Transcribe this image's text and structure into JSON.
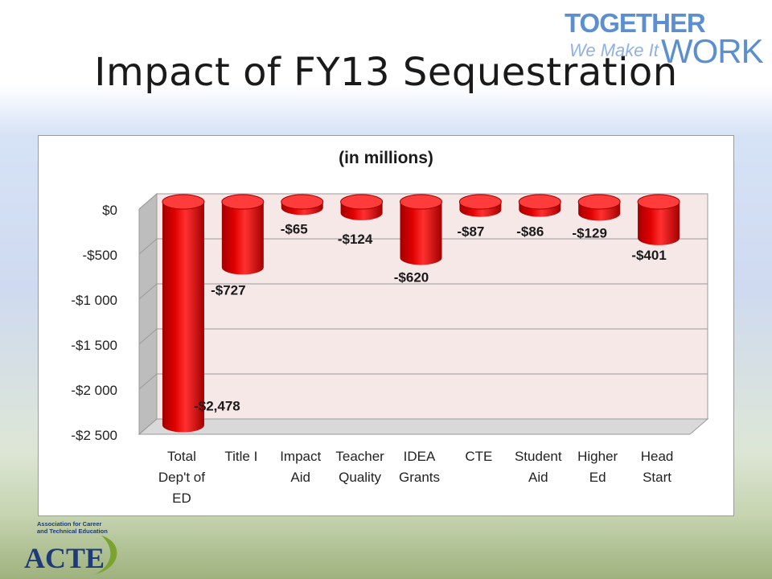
{
  "slide": {
    "title": "Impact of FY13 Sequestration",
    "logo_together_line1": "TOGETHER",
    "logo_together_line2a": "We Make It",
    "logo_together_line2b": "WORK.",
    "logo_acte_tagline_1": "Association for Career",
    "logo_acte_tagline_2": "and Technical Education",
    "logo_acte_name": "ACTE"
  },
  "colors": {
    "bar": "#e00000",
    "bar_dark": "#a30000",
    "bar_top": "#ff3c3c",
    "plot_bg": "#f7e8e8",
    "gridline": "#9a9a9a",
    "wall": "#bdbdbd",
    "logo_blue": "#5b8fd0",
    "acte_navy": "#1e3a78",
    "acte_green": "#7aa32f"
  },
  "chart_data": {
    "type": "bar",
    "subtitle": "(in millions)",
    "three_d": true,
    "grid": true,
    "legend": "none",
    "categories": [
      [
        "Total",
        "Dep't of",
        "ED"
      ],
      [
        "Title I"
      ],
      [
        "Impact",
        "Aid"
      ],
      [
        "Teacher",
        "Quality"
      ],
      [
        "IDEA",
        "Grants"
      ],
      [
        "CTE"
      ],
      [
        "Student",
        "Aid"
      ],
      [
        "Higher",
        "Ed"
      ],
      [
        "Head",
        "Start"
      ]
    ],
    "values": [
      -2478,
      -727,
      -65,
      -124,
      -620,
      -87,
      -86,
      -129,
      -401
    ],
    "data_labels": [
      "-$2,478",
      "-$727",
      "-$65",
      "-$124",
      "-$620",
      "-$87",
      "-$86",
      "-$129",
      "-$401"
    ],
    "ylim": [
      -2500,
      0
    ],
    "yticks": [
      0,
      -500,
      -1000,
      -1500,
      -2000,
      -2500
    ],
    "ytick_labels": [
      "$0",
      "-$500",
      "-$1 000",
      "-$1 500",
      "-$2 000",
      "-$2 500"
    ]
  }
}
